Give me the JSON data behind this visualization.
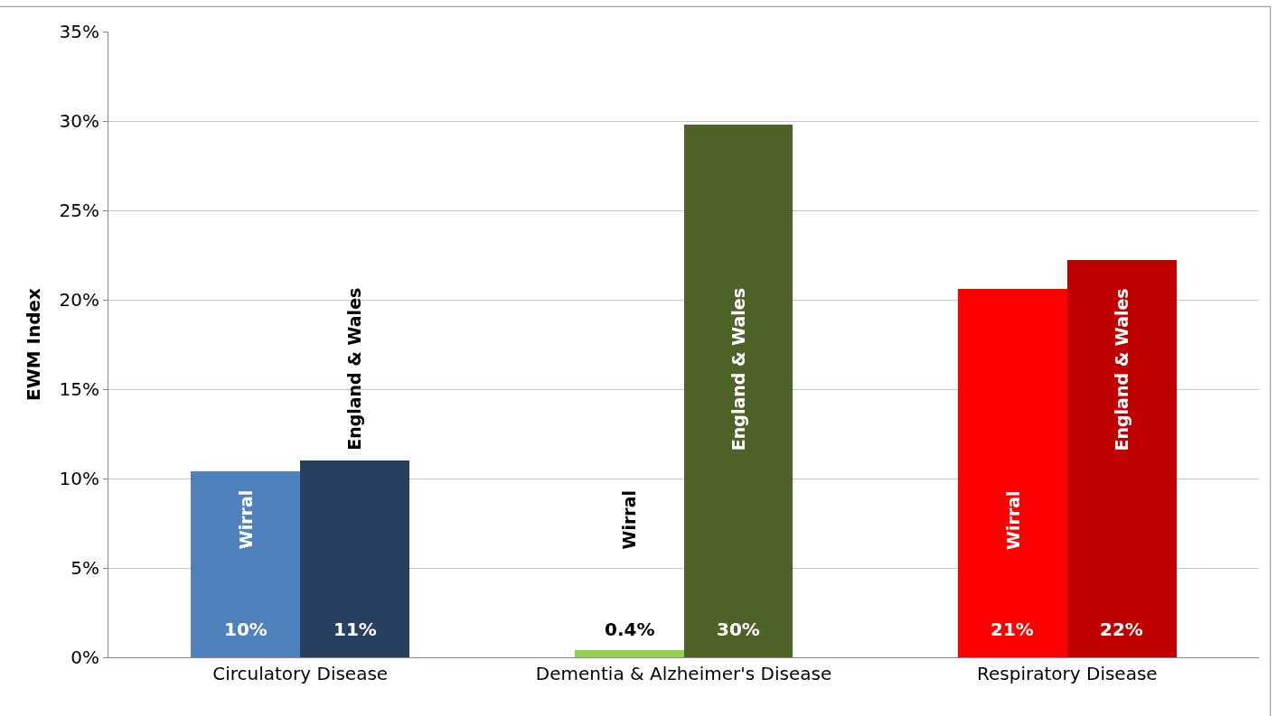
{
  "chart_data": {
    "type": "bar",
    "ylabel": "EWM Index",
    "categories": [
      "Circulatory Disease",
      "Dementia & Alzheimer's Disease",
      "Respiratory Disease"
    ],
    "series": [
      {
        "name": "Wirral",
        "colors": [
          "#4f81bd",
          "#92d050",
          "#ff0000"
        ],
        "values": [
          10.4,
          0.4,
          20.6
        ],
        "value_labels": [
          "10%",
          "0.4%",
          "21%"
        ]
      },
      {
        "name": "England & Wales",
        "colors": [
          "#283f60",
          "#4f6228",
          "#c00000"
        ],
        "values": [
          11.0,
          29.8,
          22.2
        ],
        "value_labels": [
          "11%",
          "30%",
          "22%"
        ]
      }
    ],
    "ylim": [
      0,
      35
    ],
    "yticks": [
      {
        "value": 0,
        "label": "0%"
      },
      {
        "value": 5,
        "label": "5%"
      },
      {
        "value": 10,
        "label": "10%"
      },
      {
        "value": 15,
        "label": "15%"
      },
      {
        "value": 20,
        "label": "20%"
      },
      {
        "value": 25,
        "label": "25%"
      },
      {
        "value": 30,
        "label": "30%"
      },
      {
        "value": 35,
        "label": "35%"
      }
    ],
    "grid": "y"
  }
}
